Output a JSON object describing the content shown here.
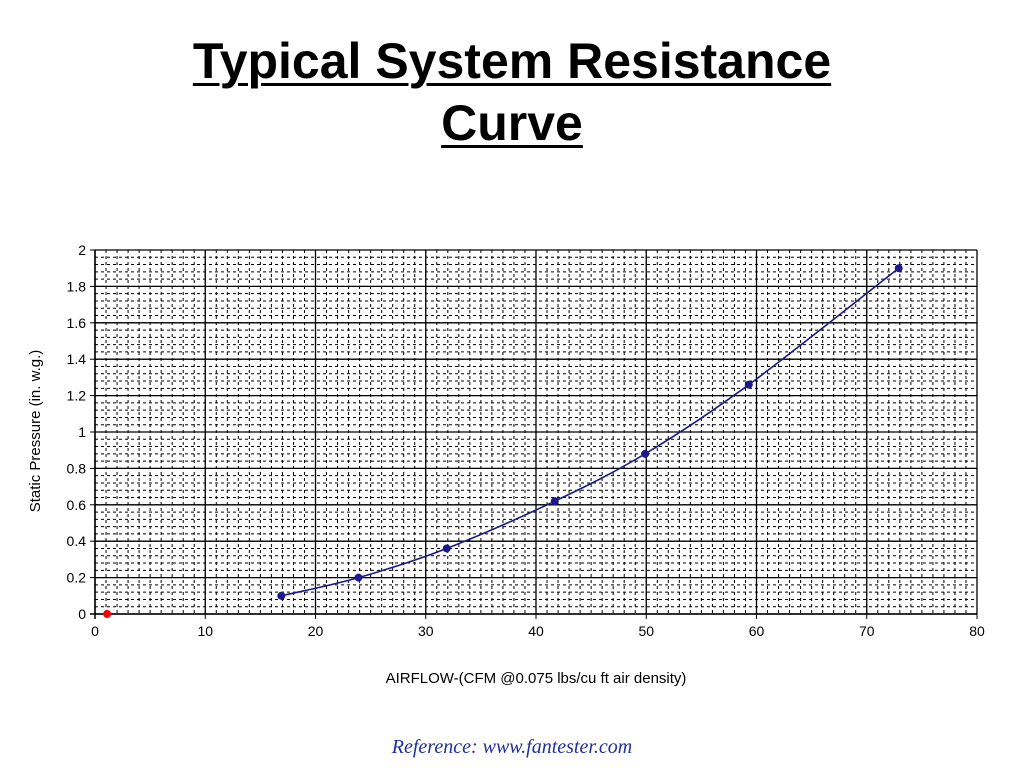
{
  "slide": {
    "title_line1": "Typical System Resistance",
    "title_line2": "Curve",
    "reference": "Reference: www.fantester.com"
  },
  "chart_data": {
    "type": "scatter",
    "title": "",
    "xlabel": "AIRFLOW-(CFM @0.075 lbs/cu ft air density)",
    "ylabel": "Static Pressure (in. w.g.)",
    "xlim": [
      0,
      80
    ],
    "ylim": [
      0,
      2
    ],
    "x_ticks": [
      0,
      10,
      20,
      30,
      40,
      50,
      60,
      70,
      80
    ],
    "y_ticks": [
      0,
      0.2,
      0.4,
      0.6,
      0.8,
      1,
      1.2,
      1.4,
      1.6,
      1.8,
      2
    ],
    "x_tick_labels": [
      "0",
      "10",
      "20",
      "30",
      "40",
      "50",
      "60",
      "70",
      "80"
    ],
    "y_tick_labels": [
      "0",
      "0.2",
      "0.4",
      "0.6",
      "0.8",
      "1",
      "1.2",
      "1.4",
      "1.6",
      "1.8",
      "2"
    ],
    "grid": true,
    "legend": "none",
    "series": [
      {
        "color": "#1a1a8c",
        "smooth_line": true,
        "x": [
          16.9,
          23.9,
          31.9,
          41.7,
          49.9,
          59.3,
          72.9
        ],
        "y": [
          0.1,
          0.2,
          0.36,
          0.62,
          0.88,
          1.26,
          1.9
        ]
      },
      {
        "color": "#ff0000",
        "smooth_line": false,
        "x": [
          1.1
        ],
        "y": [
          0.0
        ]
      }
    ]
  }
}
